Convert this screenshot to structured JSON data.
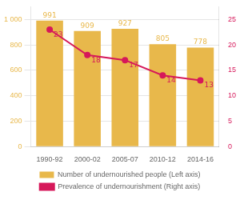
{
  "chart_data": {
    "type": "bar",
    "categories": [
      "1990-92",
      "2000-02",
      "2005-07",
      "2010-12",
      "2014-16"
    ],
    "series": [
      {
        "name": "Number of undernourished people (Left axis)",
        "type": "bar",
        "color": "#E8B84B",
        "axis": "y",
        "values": [
          991,
          909,
          927,
          805,
          778
        ]
      },
      {
        "name": "Prevalence of undernourishment (Right axis)",
        "type": "line",
        "color": "#D6185A",
        "axis": "y2",
        "marker": "circle",
        "values": [
          23,
          18,
          17,
          14,
          13
        ]
      }
    ],
    "ylim": [
      0,
      1100
    ],
    "yticks": [
      0,
      200,
      400,
      600,
      800,
      {
        "value": 1000,
        "label": "1 000"
      }
    ],
    "y2lim": [
      0,
      27.5
    ],
    "y2ticks": [
      0,
      5,
      10,
      15,
      20,
      25
    ],
    "grid": true,
    "legend": "bottom",
    "data_labels": true
  }
}
